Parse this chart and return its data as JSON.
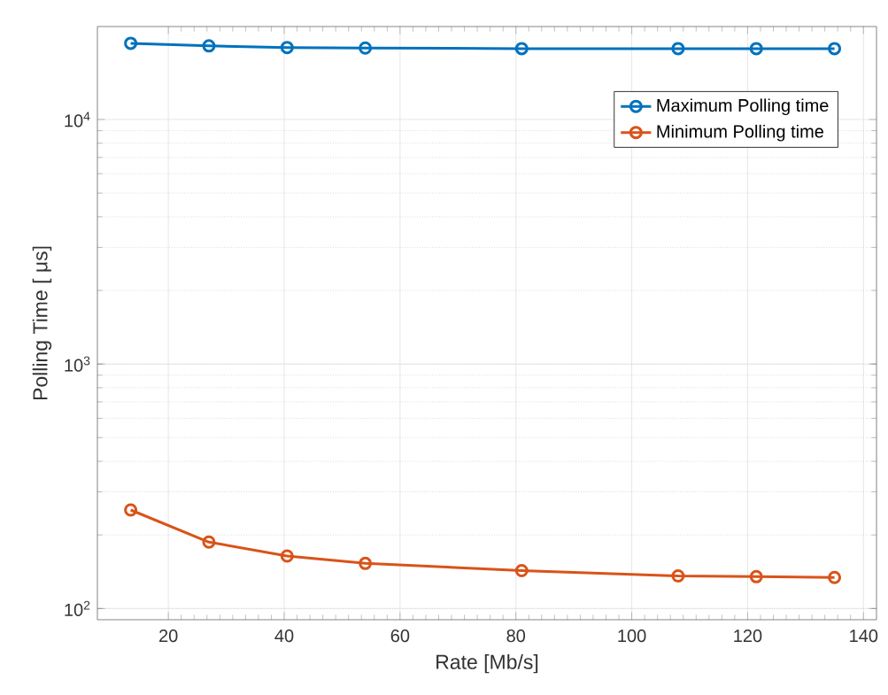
{
  "chart_data": {
    "type": "line",
    "xlabel": "Rate [Mb/s]",
    "ylabel": "Polling Time [ μs]",
    "x": [
      13.5,
      27,
      40.5,
      54,
      81,
      108,
      121.5,
      135
    ],
    "series": [
      {
        "name": "Maximum Polling time",
        "color": "#0072bd",
        "values": [
          20500,
          20000,
          19700,
          19600,
          19500,
          19500,
          19500,
          19500
        ]
      },
      {
        "name": "Minimum Polling time",
        "color": "#d95319",
        "values": [
          253,
          187,
          164,
          153,
          143,
          136,
          135,
          134
        ]
      }
    ],
    "xlim": [
      7.75,
      142.25
    ],
    "ylim": [
      90,
      24000
    ],
    "log": "y",
    "xticks": [
      20,
      40,
      60,
      80,
      100,
      120,
      140
    ],
    "yticks": [
      {
        "value": 100,
        "label": "10$^{2}$"
      },
      {
        "value": 1000,
        "label": "10$^{3}$"
      },
      {
        "value": 10000,
        "label": "10$^{4}$"
      }
    ],
    "grid": true,
    "legend": "top right",
    "marker": "circle",
    "line_style": "solid"
  }
}
